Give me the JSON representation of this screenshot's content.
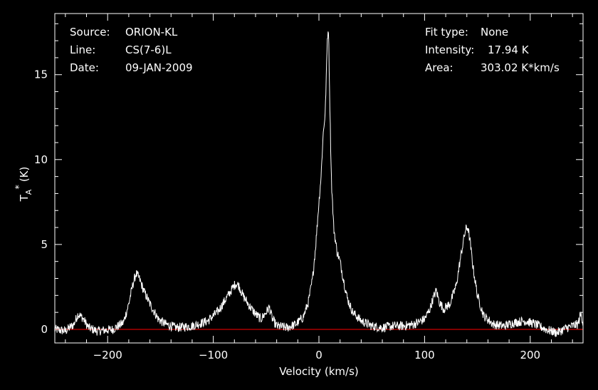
{
  "info": {
    "source_label": "Source:",
    "source_value": "ORION-KL",
    "line_label": "Line:",
    "line_value": "CS(7-6)L",
    "date_label": "Date:",
    "date_value": "09-JAN-2009",
    "fit_label": "Fit type:",
    "fit_value": "None",
    "intensity_label": "Intensity:",
    "intensity_value": "17.94 K",
    "area_label": "Area:",
    "area_value": "303.02 K*km/s"
  },
  "chart_data": {
    "type": "line",
    "title": "",
    "xlabel": "Velocity (km/s)",
    "ylabel_main": "T",
    "ylabel_sub": "A",
    "ylabel_sup": "*",
    "ylabel_unit": "(K)",
    "xlim": [
      -250,
      250
    ],
    "ylim": [
      -0.8,
      18.6
    ],
    "x_ticks": [
      -200,
      -100,
      0,
      100,
      200
    ],
    "x_tick_labels": [
      "−200",
      "−100",
      "0",
      "100",
      "200"
    ],
    "y_ticks": [
      0,
      5,
      10,
      15
    ],
    "y_tick_labels": [
      "0",
      "5",
      "10",
      "15"
    ],
    "baseline": 0,
    "line_color": "#ffffff",
    "baseline_color": "#ff0000",
    "series": [
      {
        "x": [
          -250,
          -240,
          -232,
          -228,
          -224,
          -218,
          -210,
          -195,
          -185,
          -180,
          -176,
          -173,
          -170,
          -166,
          -160,
          -152,
          -145,
          -135,
          -120,
          -105,
          -95,
          -88,
          -82,
          -79,
          -76,
          -72,
          -66,
          -60,
          -55,
          -50,
          -47,
          -44,
          -40,
          -30,
          -22,
          -15,
          -10,
          -6,
          -3,
          0,
          2,
          4,
          6,
          7,
          8,
          9,
          10,
          11,
          12,
          14,
          17,
          20,
          23,
          27,
          32,
          40,
          50,
          60,
          70,
          80,
          90,
          100,
          105,
          108,
          111,
          114,
          118,
          124,
          130,
          134,
          137,
          139,
          141,
          143,
          146,
          150,
          156,
          165,
          175,
          185,
          195,
          205,
          215,
          225,
          235,
          240,
          245,
          248,
          250
        ],
        "y": [
          0,
          -0.1,
          0.3,
          0.9,
          0.7,
          0.1,
          -0.1,
          0.0,
          0.4,
          1.5,
          2.7,
          3.3,
          3.0,
          2.3,
          1.5,
          0.6,
          0.3,
          0.1,
          0.2,
          0.5,
          1.1,
          1.8,
          2.4,
          2.7,
          2.6,
          2.0,
          1.4,
          0.9,
          0.6,
          1.0,
          1.3,
          0.6,
          0.2,
          0.1,
          0.3,
          0.7,
          1.6,
          3.0,
          5.0,
          7.5,
          9.0,
          11.5,
          12.8,
          15.0,
          17.2,
          17.7,
          14.5,
          11.0,
          8.5,
          6.0,
          4.6,
          4.0,
          3.0,
          1.8,
          1.0,
          0.5,
          0.2,
          0.1,
          0.2,
          0.2,
          0.3,
          0.6,
          1.2,
          1.8,
          2.3,
          1.6,
          1.2,
          1.5,
          2.6,
          4.2,
          5.3,
          5.9,
          6.0,
          5.2,
          3.6,
          2.0,
          0.8,
          0.3,
          0.2,
          0.4,
          0.5,
          0.3,
          0.0,
          -0.2,
          0.1,
          0.2,
          0.3,
          0.9,
          0.4
        ]
      }
    ]
  }
}
